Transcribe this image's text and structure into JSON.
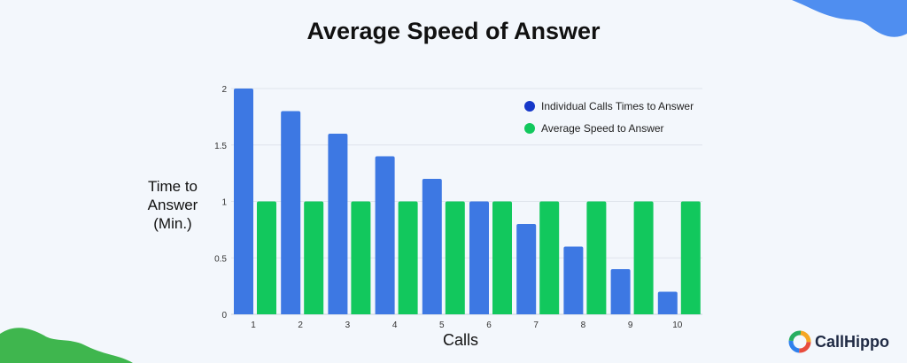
{
  "chart_data": {
    "type": "bar",
    "title": "Average Speed of Answer",
    "xlabel": "Calls",
    "ylabel": "Time to Answer (Min.)",
    "categories": [
      "1",
      "2",
      "3",
      "4",
      "5",
      "6",
      "7",
      "8",
      "9",
      "10"
    ],
    "series": [
      {
        "name": "Individual Calls Times to Answer",
        "color": "#3d78e3",
        "values": [
          2.0,
          1.8,
          1.6,
          1.4,
          1.2,
          1.0,
          0.8,
          0.6,
          0.4,
          0.2
        ]
      },
      {
        "name": "Average Speed to Answer",
        "color": "#12c85d",
        "values": [
          1,
          1,
          1,
          1,
          1,
          1,
          1,
          1,
          1,
          1
        ]
      }
    ],
    "yticks": [
      "0",
      "0.5",
      "1",
      "1.5",
      "2"
    ],
    "ylim": [
      0,
      2
    ],
    "grid": true,
    "legend": "top-right"
  },
  "ylabel_lines": [
    "Time to",
    "Answer",
    "(Min.)"
  ],
  "brand": {
    "name": "CallHippo"
  },
  "colors": {
    "legend_dot_1": "#1638c9",
    "legend_dot_2": "#12c85d",
    "decor_blue": "#4f8ef0",
    "decor_green": "#3fb64e"
  }
}
